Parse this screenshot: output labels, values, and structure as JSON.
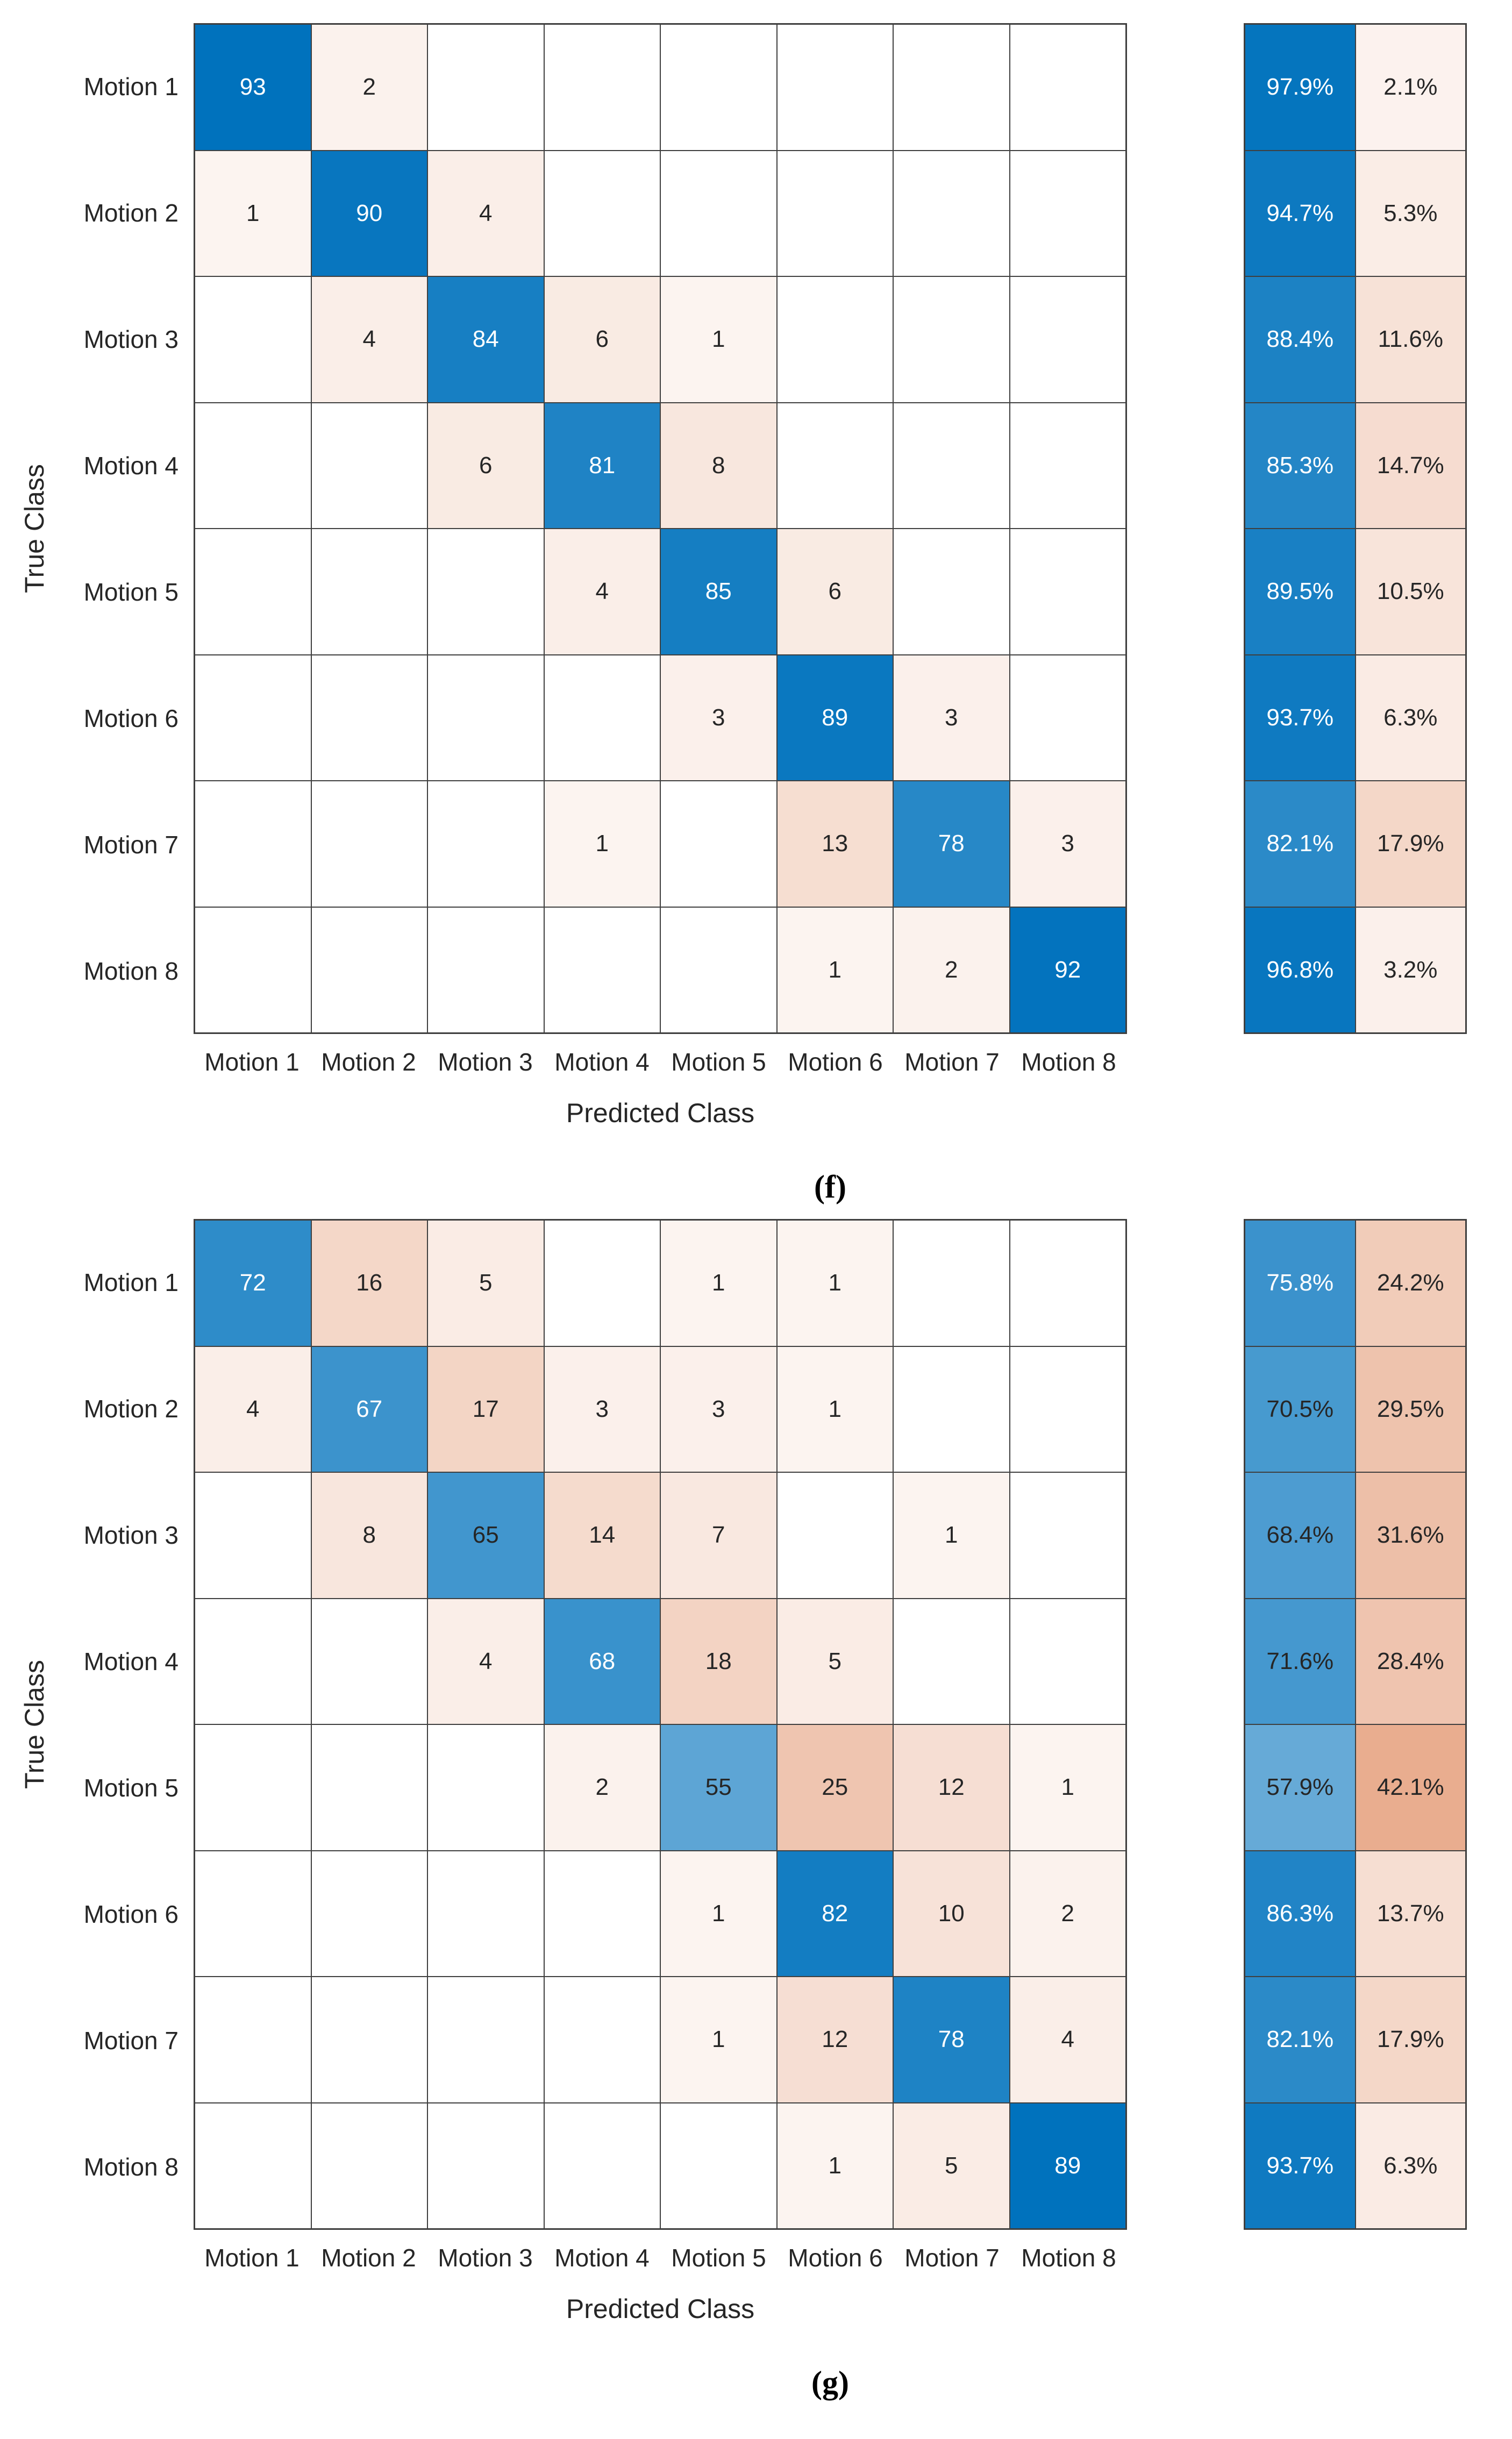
{
  "page": {
    "background": "#ffffff"
  },
  "colors": {
    "diagonal_base": "#0072BD",
    "offdiagonal_base": "#CD4806",
    "grid_line": "#3F3F3F",
    "text": "#262626",
    "text_on_dark": "#FFFFFF",
    "empty_cell": "#FFFFFF"
  },
  "chart_data": [
    {
      "type": "heatmap",
      "subtype": "confusion-matrix",
      "panel": "f",
      "caption": "(f)",
      "xlabel": "Predicted Class",
      "ylabel": "True Class",
      "classes": [
        "Motion 1",
        "Motion 2",
        "Motion 3",
        "Motion 4",
        "Motion 5",
        "Motion 6",
        "Motion 7",
        "Motion 8"
      ],
      "matrix": [
        [
          93,
          2,
          0,
          0,
          0,
          0,
          0,
          0
        ],
        [
          1,
          90,
          4,
          0,
          0,
          0,
          0,
          0
        ],
        [
          0,
          4,
          84,
          6,
          1,
          0,
          0,
          0
        ],
        [
          0,
          0,
          6,
          81,
          8,
          0,
          0,
          0
        ],
        [
          0,
          0,
          0,
          4,
          85,
          6,
          0,
          0
        ],
        [
          0,
          0,
          0,
          0,
          3,
          89,
          3,
          0
        ],
        [
          0,
          0,
          0,
          1,
          0,
          13,
          78,
          3
        ],
        [
          0,
          0,
          0,
          0,
          0,
          1,
          2,
          92
        ]
      ],
      "row_summary": [
        [
          "97.9%",
          "2.1%"
        ],
        [
          "94.7%",
          "5.3%"
        ],
        [
          "88.4%",
          "11.6%"
        ],
        [
          "85.3%",
          "14.7%"
        ],
        [
          "89.5%",
          "10.5%"
        ],
        [
          "93.7%",
          "6.3%"
        ],
        [
          "82.1%",
          "17.9%"
        ],
        [
          "96.8%",
          "3.2%"
        ]
      ]
    },
    {
      "type": "heatmap",
      "subtype": "confusion-matrix",
      "panel": "g",
      "caption": "(g)",
      "xlabel": "Predicted Class",
      "ylabel": "True Class",
      "classes": [
        "Motion 1",
        "Motion 2",
        "Motion 3",
        "Motion 4",
        "Motion 5",
        "Motion 6",
        "Motion 7",
        "Motion 8"
      ],
      "matrix": [
        [
          72,
          16,
          5,
          0,
          1,
          1,
          0,
          0
        ],
        [
          4,
          67,
          17,
          3,
          3,
          1,
          0,
          0
        ],
        [
          0,
          8,
          65,
          14,
          7,
          0,
          1,
          0
        ],
        [
          0,
          0,
          4,
          68,
          18,
          5,
          0,
          0
        ],
        [
          0,
          0,
          0,
          2,
          55,
          25,
          12,
          1
        ],
        [
          0,
          0,
          0,
          0,
          1,
          82,
          10,
          2
        ],
        [
          0,
          0,
          0,
          0,
          1,
          12,
          78,
          4
        ],
        [
          0,
          0,
          0,
          0,
          0,
          1,
          5,
          89
        ]
      ],
      "row_summary": [
        [
          "75.8%",
          "24.2%"
        ],
        [
          "70.5%",
          "29.5%"
        ],
        [
          "68.4%",
          "31.6%"
        ],
        [
          "71.6%",
          "28.4%"
        ],
        [
          "57.9%",
          "42.1%"
        ],
        [
          "86.3%",
          "13.7%"
        ],
        [
          "82.1%",
          "17.9%"
        ],
        [
          "93.7%",
          "6.3%"
        ]
      ]
    }
  ]
}
